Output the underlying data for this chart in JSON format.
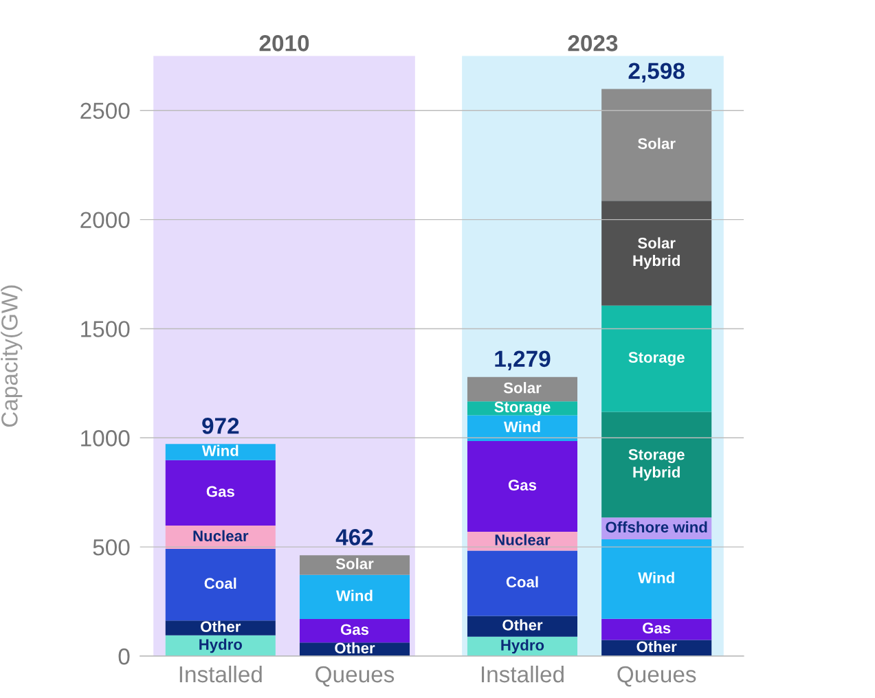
{
  "chart_data": {
    "type": "bar",
    "stacked": true,
    "ylabel": "Capacity(GW)",
    "categories": [
      "Installed",
      "Queues",
      "Installed",
      "Queues"
    ],
    "series": [
      {
        "name": "Hydro",
        "color": "#72e3d2",
        "values": [
          95,
          null,
          89,
          null
        ]
      },
      {
        "name": "Other",
        "color": "#0b2a78",
        "values": [
          68,
          62,
          95,
          74
        ]
      },
      {
        "name": "Coal",
        "color": "#2b4fd8",
        "values": [
          328,
          null,
          299,
          null
        ]
      },
      {
        "name": "Nuclear",
        "color": "#f7a9c9",
        "values": [
          107,
          null,
          87,
          null
        ]
      },
      {
        "name": "Gas",
        "color": "#6a14e0",
        "values": [
          300,
          108,
          415,
          97
        ]
      },
      {
        "name": "Wind",
        "color": "#1cb2f2",
        "values": [
          74,
          202,
          118,
          364
        ]
      },
      {
        "name": "Offshore wind",
        "color": "#b99ef5",
        "values": [
          null,
          null,
          null,
          100
        ]
      },
      {
        "name": "Storage Hybrid",
        "color": "#12917d",
        "values": [
          null,
          null,
          null,
          484
        ]
      },
      {
        "name": "Storage",
        "color": "#14bba8",
        "values": [
          null,
          null,
          64,
          487
        ]
      },
      {
        "name": "Solar Hybrid",
        "color": "#525252",
        "values": [
          null,
          null,
          null,
          480
        ]
      },
      {
        "name": "Solar",
        "color": "#8c8c8c",
        "values": [
          null,
          90,
          112,
          512
        ]
      }
    ],
    "totals": [
      "972",
      "462",
      "1,279",
      "2,598"
    ],
    "ylim": [
      0,
      2750
    ],
    "yticks": [
      0,
      500,
      1000,
      1500,
      2000,
      2500
    ],
    "grid": "y",
    "legend": false,
    "annotations": [
      "2010",
      "2023"
    ]
  }
}
